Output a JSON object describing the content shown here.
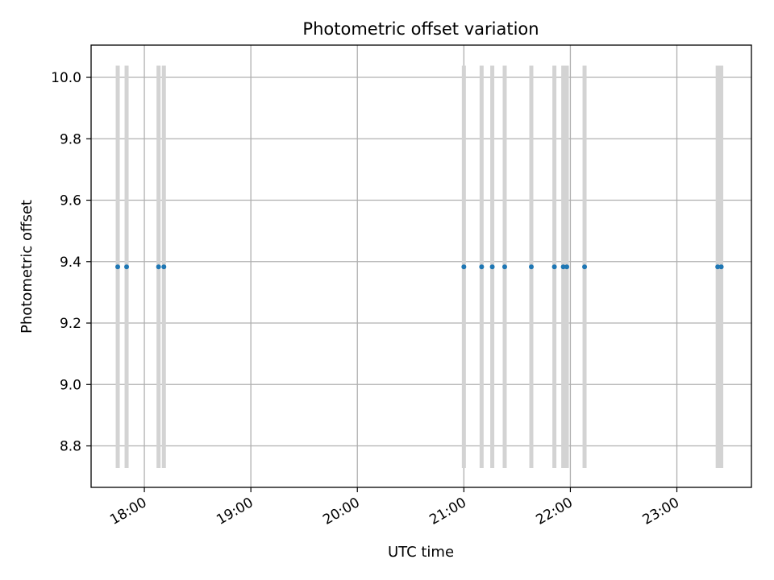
{
  "chart_data": {
    "type": "scatter",
    "title": "Photometric offset variation",
    "xlabel": "UTC time",
    "ylabel": "Photometric offset",
    "x_tick_labels": [
      "18:00",
      "19:00",
      "20:00",
      "21:00",
      "22:00",
      "23:00"
    ],
    "y_tick_labels": [
      "8.8",
      "9.0",
      "9.2",
      "9.4",
      "9.6",
      "9.8",
      "10.0"
    ],
    "xlim": [
      "17:30",
      "23:42"
    ],
    "ylim": [
      8.665,
      10.105
    ],
    "grid": true,
    "marker_color": "#1f77b4",
    "errorbar_color": "#d3d3d3",
    "points": [
      {
        "x": "17:45",
        "y": 9.383,
        "err": 0.655
      },
      {
        "x": "17:50",
        "y": 9.383,
        "err": 0.655
      },
      {
        "x": "18:08",
        "y": 9.383,
        "err": 0.655
      },
      {
        "x": "18:11",
        "y": 9.383,
        "err": 0.655
      },
      {
        "x": "21:00",
        "y": 9.383,
        "err": 0.655
      },
      {
        "x": "21:10",
        "y": 9.383,
        "err": 0.655
      },
      {
        "x": "21:16",
        "y": 9.383,
        "err": 0.655
      },
      {
        "x": "21:23",
        "y": 9.383,
        "err": 0.655
      },
      {
        "x": "21:38",
        "y": 9.383,
        "err": 0.655
      },
      {
        "x": "21:51",
        "y": 9.383,
        "err": 0.655
      },
      {
        "x": "21:56",
        "y": 9.383,
        "err": 0.655
      },
      {
        "x": "21:58",
        "y": 9.383,
        "err": 0.655
      },
      {
        "x": "22:08",
        "y": 9.383,
        "err": 0.655
      },
      {
        "x": "23:23",
        "y": 9.383,
        "err": 0.655
      },
      {
        "x": "23:25",
        "y": 9.383,
        "err": 0.655
      }
    ]
  }
}
